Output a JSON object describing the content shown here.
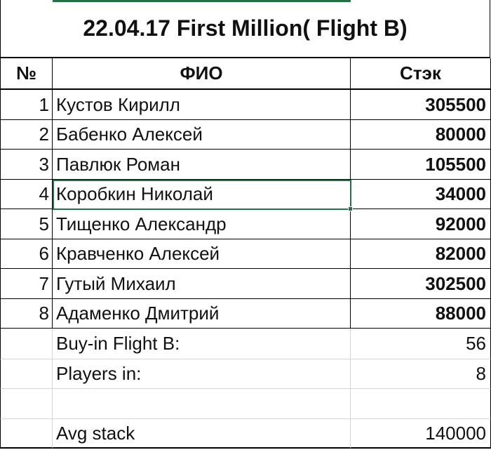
{
  "title": "22.04.17 First Million( Flight B)",
  "headers": {
    "num": "№",
    "name": "ФИО",
    "stack": "Стэк"
  },
  "players": [
    {
      "num": "1",
      "name": "Кустов Кирилл",
      "stack": "305500"
    },
    {
      "num": "2",
      "name": "Бабенко Алексей",
      "stack": "80000"
    },
    {
      "num": "3",
      "name": "Павлюк Роман",
      "stack": "105500"
    },
    {
      "num": "4",
      "name": "Коробкин Николай",
      "stack": "34000"
    },
    {
      "num": "5",
      "name": "Тищенко Александр",
      "stack": "92000"
    },
    {
      "num": "6",
      "name": "Кравченко Алексей",
      "stack": "82000"
    },
    {
      "num": "7",
      "name": "Гутый Михаил",
      "stack": "302500"
    },
    {
      "num": "8",
      "name": "Адаменко Дмитрий",
      "stack": "88000"
    }
  ],
  "summary": [
    {
      "label": "Buy-in Flight B:",
      "value": "56"
    },
    {
      "label": "Players in:",
      "value": "8"
    },
    {
      "label": "",
      "value": ""
    },
    {
      "label": "Avg stack",
      "value": "140000"
    }
  ],
  "selected_cell": "Коробкин Николай",
  "accent_color": "#217346"
}
